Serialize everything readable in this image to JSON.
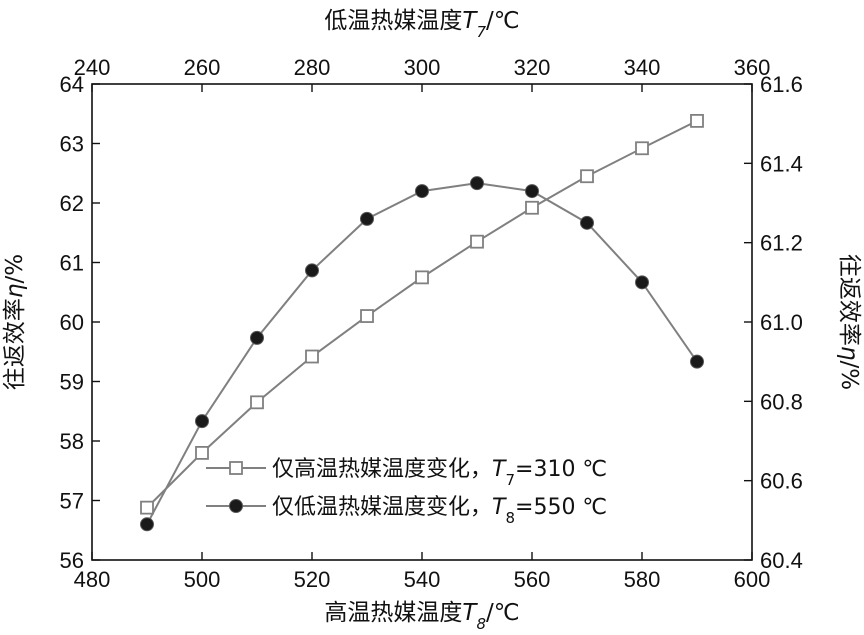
{
  "chart_data": {
    "type": "line",
    "axes": {
      "bottom": {
        "title_main": "高温热媒温度",
        "title_var": "T",
        "title_sub": "8",
        "title_unit": "/℃",
        "lim": [
          480,
          600
        ],
        "ticks": [
          "480",
          "500",
          "520",
          "540",
          "560",
          "580",
          "600"
        ]
      },
      "top": {
        "title_main": "低温热媒温度",
        "title_var": "T",
        "title_sub": "7",
        "title_unit": "/℃",
        "lim": [
          240,
          360
        ],
        "ticks": [
          "240",
          "260",
          "280",
          "300",
          "320",
          "340",
          "360"
        ]
      },
      "left": {
        "title_main": "往返效率",
        "title_var": "η",
        "title_unit": "/%",
        "lim": [
          56,
          64
        ],
        "ticks": [
          "56",
          "57",
          "58",
          "59",
          "60",
          "61",
          "62",
          "63",
          "64"
        ]
      },
      "right": {
        "title_main": "往返效率",
        "title_var": "η",
        "title_unit": "/%",
        "lim": [
          60.4,
          61.6
        ],
        "ticks": [
          "60.4",
          "60.6",
          "60.8",
          "61.0",
          "61.2",
          "61.4",
          "61.6"
        ]
      }
    },
    "series": [
      {
        "name": "仅高温热媒温度变化，T7=310 ℃",
        "legend_main": "仅高温热媒温度变化，",
        "legend_var": "T",
        "legend_sub": "7",
        "legend_val": "=310 ℃",
        "marker": "open-square",
        "x_axis": "bottom",
        "y_axis": "left",
        "x": [
          490,
          500,
          510,
          520,
          530,
          540,
          550,
          560,
          570,
          580,
          590
        ],
        "y": [
          56.88,
          57.8,
          58.65,
          59.42,
          60.1,
          60.75,
          61.35,
          61.92,
          62.45,
          62.92,
          63.38
        ]
      },
      {
        "name": "仅低温热媒温度变化，T8=550 ℃",
        "legend_main": "仅低温热媒温度变化，",
        "legend_var": "T",
        "legend_sub": "8",
        "legend_val": "=550 ℃",
        "marker": "filled-circle",
        "x_axis": "top",
        "y_axis": "right",
        "x": [
          250,
          260,
          270,
          280,
          290,
          300,
          310,
          320,
          330,
          340,
          350
        ],
        "y": [
          60.49,
          60.75,
          60.96,
          61.13,
          61.26,
          61.33,
          61.35,
          61.33,
          61.25,
          61.1,
          60.9
        ]
      }
    ],
    "legend": "bottom-right",
    "grid": false,
    "colors": {
      "line": "#808080",
      "marker_edge": "#808080",
      "filled_marker": "#1a1a1a",
      "axis": "#111111"
    }
  }
}
